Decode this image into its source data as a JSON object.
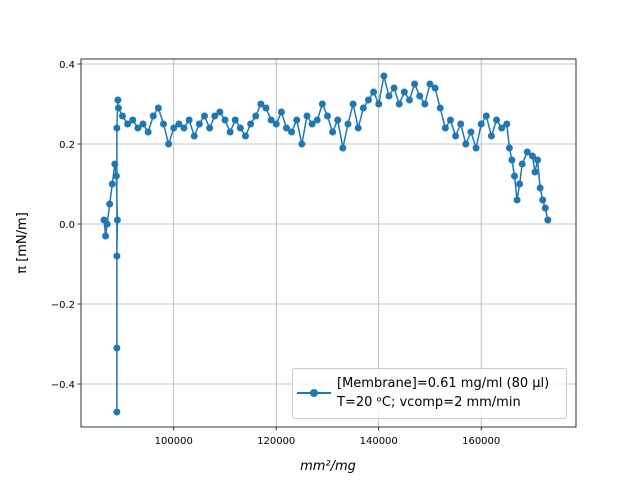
{
  "chart_data": {
    "type": "line",
    "x_label": "mm²/mg",
    "y_label": "π [mN/m]",
    "xlim": [
      81900,
      178500
    ],
    "ylim": [
      -0.5075,
      0.4125
    ],
    "xticks": [
      100000,
      120000,
      140000,
      160000
    ],
    "yticks": [
      {
        "value": -0.4,
        "label": "−0.4"
      },
      {
        "value": -0.2,
        "label": "−0.2"
      },
      {
        "value": 0,
        "label": "0.0"
      },
      0.2,
      0.4
    ],
    "grid": true,
    "legend": "lower right",
    "series": [
      {
        "name": "[Membrane]=0.61 mg/ml (80 μl)\nT=20 ᵒC; vcomp=2 mm/min",
        "color": "#1f77b4",
        "x": [
          86400,
          86700,
          87000,
          87500,
          88000,
          88500,
          88800,
          89000,
          88900,
          88900,
          88900,
          88900,
          89100,
          89200,
          90000,
          91000,
          92000,
          93000,
          94000,
          95000,
          96000,
          97000,
          98000,
          99000,
          100000,
          101000,
          102000,
          103000,
          104000,
          105000,
          106000,
          107000,
          108000,
          109000,
          110000,
          111000,
          112000,
          113000,
          114000,
          115000,
          116000,
          117000,
          118000,
          119000,
          120000,
          121000,
          122000,
          123000,
          124000,
          125000,
          126000,
          127000,
          128000,
          129000,
          130000,
          131000,
          132000,
          133000,
          134000,
          135000,
          136000,
          137000,
          138000,
          139000,
          140000,
          141000,
          142000,
          143000,
          144000,
          145000,
          146000,
          147000,
          148000,
          149000,
          150000,
          151000,
          152000,
          153000,
          154000,
          155000,
          156000,
          157000,
          158000,
          159000,
          160000,
          161000,
          162000,
          163000,
          164000,
          165000,
          165500,
          166000,
          166500,
          167000,
          167500,
          168000,
          169000,
          170000,
          170500,
          171000,
          171500,
          172000,
          172500,
          173000
        ],
        "values": [
          0.01,
          -0.03,
          0.0,
          0.05,
          0.1,
          0.15,
          0.12,
          0.01,
          -0.08,
          -0.31,
          -0.47,
          0.24,
          0.31,
          0.29,
          0.27,
          0.25,
          0.26,
          0.24,
          0.25,
          0.23,
          0.27,
          0.29,
          0.25,
          0.2,
          0.24,
          0.25,
          0.24,
          0.26,
          0.22,
          0.25,
          0.27,
          0.24,
          0.27,
          0.28,
          0.26,
          0.23,
          0.26,
          0.24,
          0.22,
          0.25,
          0.27,
          0.3,
          0.29,
          0.26,
          0.25,
          0.28,
          0.24,
          0.23,
          0.26,
          0.2,
          0.27,
          0.25,
          0.26,
          0.3,
          0.27,
          0.23,
          0.26,
          0.19,
          0.25,
          0.3,
          0.24,
          0.29,
          0.31,
          0.33,
          0.3,
          0.37,
          0.32,
          0.34,
          0.3,
          0.33,
          0.31,
          0.35,
          0.32,
          0.3,
          0.35,
          0.34,
          0.29,
          0.24,
          0.26,
          0.22,
          0.25,
          0.2,
          0.23,
          0.19,
          0.25,
          0.27,
          0.22,
          0.26,
          0.24,
          0.25,
          0.19,
          0.16,
          0.12,
          0.06,
          0.1,
          0.15,
          0.18,
          0.17,
          0.13,
          0.16,
          0.09,
          0.06,
          0.04,
          0.01
        ]
      }
    ]
  }
}
